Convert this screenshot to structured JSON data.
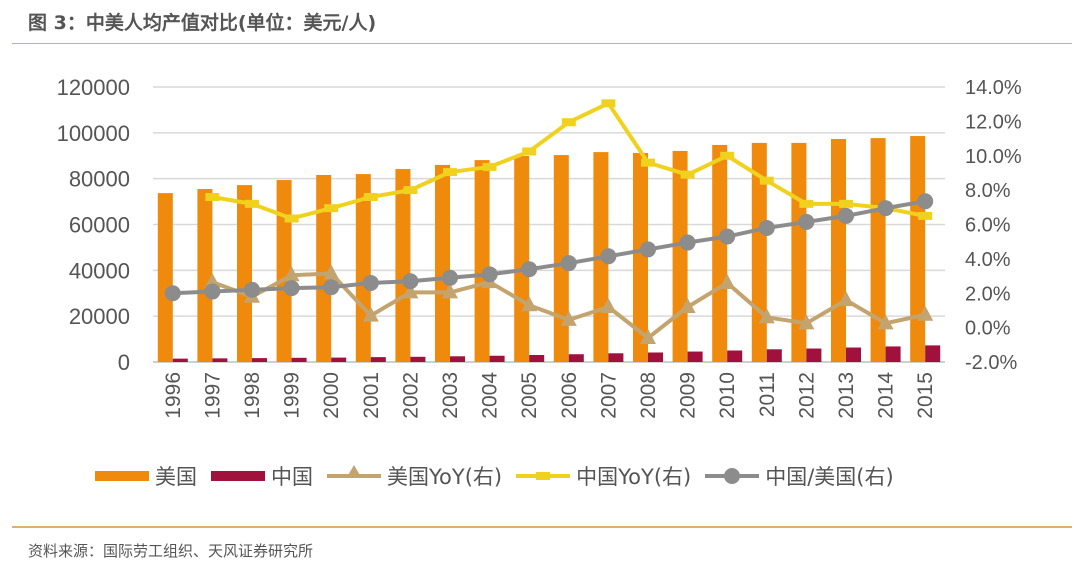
{
  "title": "图 3：中美人均产值对比(单位：美元/人)",
  "source": "资料来源：国际劳工组织、天风证券研究所",
  "colors": {
    "usa": "#f08a0c",
    "china": "#a0113e",
    "usa_yoy": "#c4a46e",
    "china_yoy": "#f0d21e",
    "ratio": "#8c8c8c",
    "grid": "#d9d9d9"
  },
  "chart_data": {
    "type": "bar+line",
    "title": "中美人均产值对比(单位：美元/人)",
    "categories": [
      "1996",
      "1997",
      "1998",
      "1999",
      "2000",
      "2001",
      "2002",
      "2003",
      "2004",
      "2005",
      "2006",
      "2007",
      "2008",
      "2009",
      "2010",
      "2011",
      "2012",
      "2013",
      "2014",
      "2015"
    ],
    "left_axis": {
      "ylim": [
        0,
        120000
      ],
      "ticks": [
        "0",
        "20000",
        "40000",
        "60000",
        "80000",
        "100000",
        "120000"
      ]
    },
    "right_axis": {
      "ylim": [
        -2,
        14
      ],
      "ticks": [
        "-2.0%",
        "0.0%",
        "2.0%",
        "4.0%",
        "6.0%",
        "8.0%",
        "10.0%",
        "12.0%",
        "14.0%"
      ]
    },
    "grid": true,
    "legend_position": "bottom",
    "series": [
      {
        "name": "美国",
        "kind": "bar",
        "axis": "left",
        "values": [
          73700,
          75500,
          77200,
          79400,
          81600,
          82000,
          84200,
          86000,
          88100,
          89900,
          90300,
          91600,
          91200,
          92100,
          94700,
          95600,
          95600,
          97300,
          97700,
          98600
        ]
      },
      {
        "name": "中国",
        "kind": "bar",
        "axis": "left",
        "values": [
          1470,
          1590,
          1700,
          1830,
          1920,
          2130,
          2270,
          2490,
          2730,
          3060,
          3390,
          3800,
          4150,
          4560,
          5020,
          5540,
          5880,
          6320,
          6790,
          7250
        ]
      },
      {
        "name": "美国YoY(右)",
        "kind": "line-triangle",
        "axis": "right",
        "values": [
          null,
          2.65,
          1.8,
          3.05,
          3.15,
          0.7,
          2.05,
          2.05,
          2.65,
          1.3,
          0.45,
          1.2,
          -0.6,
          1.2,
          2.6,
          0.6,
          0.25,
          1.6,
          0.25,
          0.75
        ]
      },
      {
        "name": "中国YoY(右)",
        "kind": "line-dash",
        "axis": "right",
        "values": [
          null,
          7.6,
          7.2,
          6.35,
          6.95,
          7.6,
          8.0,
          9.05,
          9.35,
          10.25,
          11.95,
          13.05,
          9.6,
          8.9,
          10.0,
          8.55,
          7.2,
          7.2,
          6.95,
          6.5
        ]
      },
      {
        "name": "中国/美国(右)",
        "kind": "line-circle",
        "axis": "right",
        "values": [
          2.0,
          2.1,
          2.2,
          2.3,
          2.35,
          2.6,
          2.7,
          2.9,
          3.1,
          3.4,
          3.75,
          4.15,
          4.55,
          4.95,
          5.3,
          5.8,
          6.15,
          6.5,
          6.95,
          7.35
        ]
      }
    ]
  }
}
